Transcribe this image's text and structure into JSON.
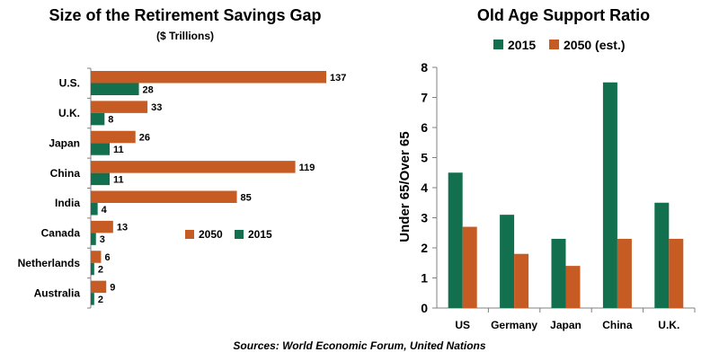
{
  "colors": {
    "s2015": "#12704e",
    "s2050": "#c75b24",
    "axis": "#808080"
  },
  "chart_data": [
    {
      "type": "bar",
      "orientation": "horizontal",
      "title": "Size of the Retirement Savings Gap",
      "subtitle": "($ Trillions)",
      "categories": [
        "U.S.",
        "U.K.",
        "Japan",
        "China",
        "India",
        "Canada",
        "Netherlands",
        "Australia"
      ],
      "series": [
        {
          "name": "2050",
          "values": [
            137,
            33,
            26,
            119,
            85,
            13,
            6,
            9
          ]
        },
        {
          "name": "2015",
          "values": [
            28,
            8,
            11,
            11,
            4,
            3,
            2,
            2
          ]
        }
      ],
      "xlim": [
        0,
        140
      ],
      "legend": "center-right"
    },
    {
      "type": "bar",
      "orientation": "vertical",
      "title": "Old Age Support Ratio",
      "categories": [
        "US",
        "Germany",
        "Japan",
        "China",
        "U.K."
      ],
      "series": [
        {
          "name": "2015",
          "values": [
            4.5,
            3.1,
            2.3,
            7.5,
            3.5
          ]
        },
        {
          "name": "2050 (est.)",
          "values": [
            2.7,
            1.8,
            1.4,
            2.3,
            2.3
          ]
        }
      ],
      "ylabel": "Under 65/Over 65",
      "ylim": [
        0,
        8
      ],
      "yticks": [
        0,
        1,
        2,
        3,
        4,
        5,
        6,
        7,
        8
      ],
      "grid": false,
      "legend": "top"
    }
  ],
  "source": "Sources: World Economic Forum, United Nations"
}
